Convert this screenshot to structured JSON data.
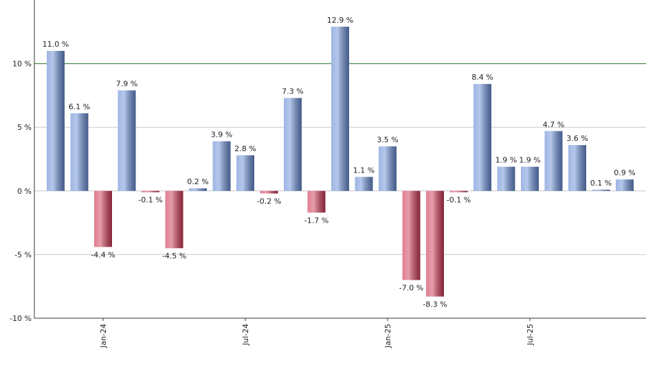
{
  "chart_data": {
    "type": "bar",
    "categories": [
      null,
      null,
      "Jan-24",
      null,
      null,
      null,
      null,
      null,
      "Jul-24",
      null,
      null,
      null,
      null,
      null,
      "Jan-25",
      null,
      null,
      null,
      null,
      null,
      "Jul-25",
      null,
      null,
      null,
      null
    ],
    "values": [
      11.0,
      6.1,
      -4.4,
      7.9,
      -0.1,
      -4.5,
      0.2,
      3.9,
      2.8,
      -0.2,
      7.3,
      -1.7,
      12.9,
      1.1,
      3.5,
      -7.0,
      -8.3,
      -0.1,
      8.4,
      1.9,
      1.9,
      4.7,
      3.6,
      0.1,
      0.9
    ],
    "value_labels": [
      "11.0 %",
      "6.1 %",
      "-4.4 %",
      "7.9 %",
      "-0.1 %",
      "-4.5 %",
      "0.2 %",
      "3.9 %",
      "2.8 %",
      "-0.2 %",
      "7.3 %",
      "-1.7 %",
      "12.9 %",
      "1.1 %",
      "3.5 %",
      "-7.0 %",
      "-8.3 %",
      "-0.1 %",
      "8.4 %",
      "1.9 %",
      "1.9 %",
      "4.7 %",
      "3.6 %",
      "0.1 %",
      "0.9 %"
    ],
    "positive_color": "#6b8fd6",
    "negative_color": "#cf3a56",
    "ylim": [
      -10,
      15
    ],
    "yticks": [
      {
        "value": -10,
        "label": "-10 %"
      },
      {
        "value": -5,
        "label": "-5 %"
      },
      {
        "value": 0,
        "label": "0 %"
      },
      {
        "value": 5,
        "label": "5 %"
      },
      {
        "value": 10,
        "label": "10 %"
      }
    ],
    "grid": true,
    "reference_line": {
      "value": 10,
      "color": "#2e7d32"
    }
  }
}
